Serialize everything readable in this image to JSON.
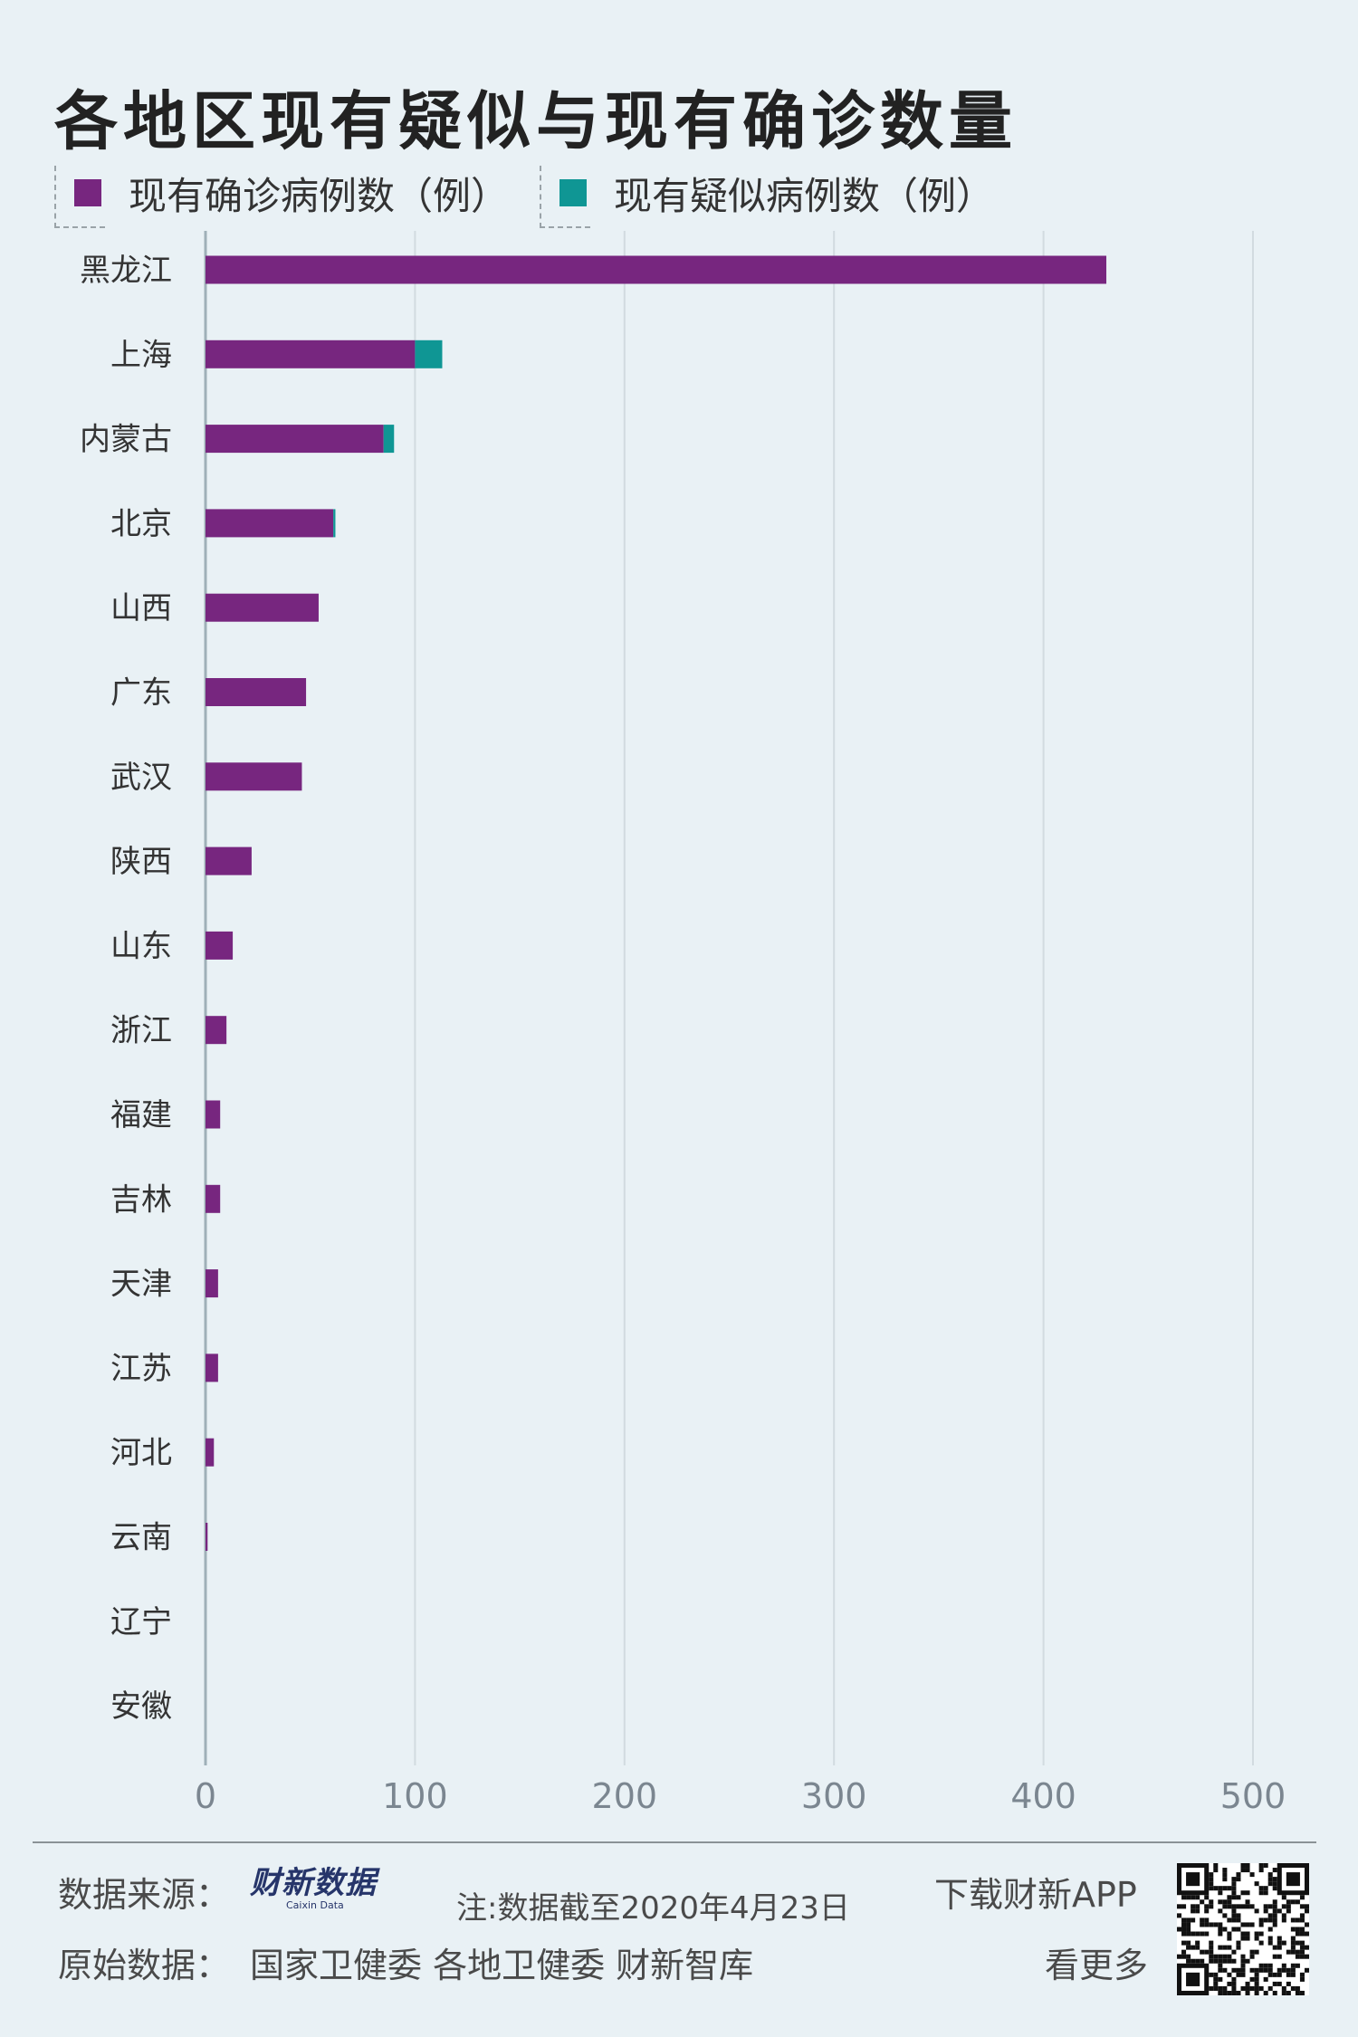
{
  "header": {
    "title": "各地区现有疑似与现有确诊数量"
  },
  "legend": {
    "items": [
      {
        "label": "现有确诊病例数（例）",
        "color": "#77267f"
      },
      {
        "label": "现有疑似病例数（例）",
        "color": "#0f9694"
      }
    ]
  },
  "chart_data": {
    "type": "bar",
    "orientation": "horizontal",
    "stacked": true,
    "title": "各地区现有疑似与现有确诊数量",
    "categories": [
      "黑龙江",
      "上海",
      "内蒙古",
      "北京",
      "山西",
      "广东",
      "武汉",
      "陕西",
      "山东",
      "浙江",
      "福建",
      "吉林",
      "天津",
      "江苏",
      "河北",
      "云南",
      "辽宁",
      "安徽"
    ],
    "series": [
      {
        "name": "现有确诊病例数（例）",
        "color": "#77267f",
        "values": [
          430,
          100,
          85,
          61,
          54,
          48,
          46,
          22,
          13,
          10,
          7,
          7,
          6,
          6,
          4,
          1,
          0,
          0
        ]
      },
      {
        "name": "现有疑似病例数（例）",
        "color": "#0f9694",
        "values": [
          0,
          13,
          5,
          1,
          0,
          0,
          0,
          0,
          0,
          0,
          0,
          0,
          0,
          0,
          0,
          0,
          0,
          0
        ]
      }
    ],
    "xlim": [
      0,
      500
    ],
    "ticks": [
      0,
      100,
      200,
      300,
      400,
      500
    ],
    "grid": true,
    "legend_position": "top-left"
  },
  "footer": {
    "source_label": "数据来源：",
    "logo_text": "财新数据",
    "logo_subtext": "Caixin Data",
    "note": "注:数据截至2020年4月23日",
    "original_label": "原始数据：",
    "original_sources": "国家卫健委  各地卫健委  财新智库",
    "download": "下载财新APP",
    "more": "看更多"
  }
}
